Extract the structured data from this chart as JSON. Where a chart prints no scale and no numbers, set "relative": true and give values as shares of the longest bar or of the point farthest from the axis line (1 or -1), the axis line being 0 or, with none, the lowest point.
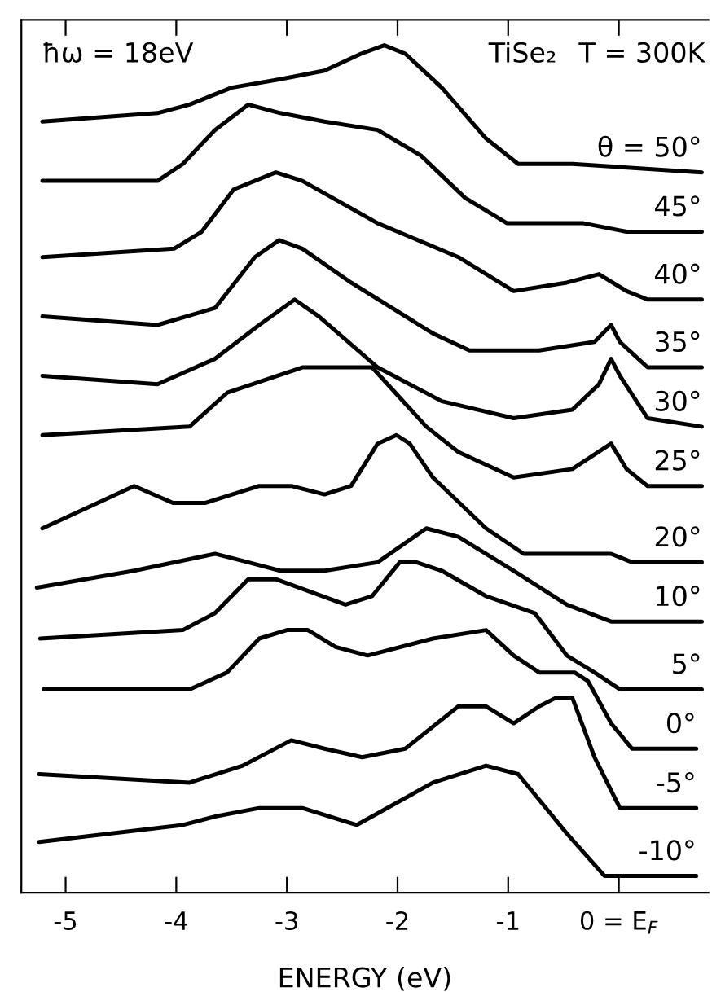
{
  "chart_data": {
    "type": "line",
    "relative": true,
    "xlabel": "ENERGY (eV)",
    "xlim": [
      -5.4,
      0.81
    ],
    "xticks": [
      -5,
      -4,
      -3,
      -2,
      -1,
      {
        "value": 0,
        "label": "0 = E$_{F}$"
      }
    ],
    "annotations": [
      "ħω = 18eV",
      "TiSe₂",
      "T = 300K"
    ],
    "legend": false,
    "grid": false,
    "marker": "none",
    "line_style": "solid",
    "series": [
      {
        "name": "θ = 50°",
        "color": "#000000",
        "x": [
          -5.21,
          -4.17,
          -3.88,
          -3.5,
          -3.06,
          -2.66,
          -2.33,
          -2.12,
          -1.93,
          -1.6,
          -1.2,
          -0.91,
          -0.42,
          0.75
        ],
        "values": [
          0.91,
          0.92,
          0.93,
          0.95,
          0.96,
          0.97,
          0.99,
          1.0,
          0.99,
          0.95,
          0.89,
          0.86,
          0.86,
          0.85
        ]
      },
      {
        "name": "45°",
        "color": "#000000",
        "x": [
          -5.21,
          -4.17,
          -3.94,
          -3.65,
          -3.35,
          -3.06,
          -2.66,
          -2.18,
          -1.79,
          -1.39,
          -1.01,
          -0.32,
          0.07,
          0.75
        ],
        "values": [
          0.84,
          0.84,
          0.86,
          0.9,
          0.93,
          0.92,
          0.91,
          0.9,
          0.87,
          0.82,
          0.79,
          0.79,
          0.78,
          0.78
        ]
      },
      {
        "name": "40°",
        "color": "#000000",
        "x": [
          -5.21,
          -4.02,
          -3.77,
          -3.48,
          -3.1,
          -2.86,
          -2.18,
          -1.45,
          -0.95,
          -0.47,
          -0.18,
          0.07,
          0.26,
          0.75
        ],
        "values": [
          0.75,
          0.76,
          0.78,
          0.83,
          0.85,
          0.84,
          0.79,
          0.75,
          0.71,
          0.72,
          0.73,
          0.71,
          0.7,
          0.7
        ]
      },
      {
        "name": "35°",
        "color": "#000000",
        "x": [
          -5.21,
          -4.17,
          -3.65,
          -3.29,
          -3.07,
          -2.86,
          -2.42,
          -1.68,
          -1.35,
          -0.72,
          -0.22,
          -0.07,
          0.01,
          0.26,
          0.75
        ],
        "values": [
          0.68,
          0.67,
          0.69,
          0.75,
          0.77,
          0.76,
          0.72,
          0.66,
          0.64,
          0.64,
          0.65,
          0.67,
          0.65,
          0.62,
          0.62
        ]
      },
      {
        "name": "30°",
        "color": "#000000",
        "x": [
          -5.21,
          -4.17,
          -3.65,
          -3.25,
          -2.93,
          -2.71,
          -2.18,
          -1.6,
          -0.95,
          -0.42,
          -0.18,
          -0.07,
          0.01,
          0.26,
          0.75
        ],
        "values": [
          0.61,
          0.6,
          0.63,
          0.67,
          0.7,
          0.68,
          0.62,
          0.58,
          0.56,
          0.57,
          0.6,
          0.63,
          0.61,
          0.56,
          0.55
        ]
      },
      {
        "name": "25°",
        "color": "#000000",
        "x": [
          -5.21,
          -3.88,
          -3.54,
          -2.86,
          -2.42,
          -2.23,
          -1.74,
          -1.45,
          -0.95,
          -0.42,
          -0.07,
          0.07,
          0.26,
          0.75
        ],
        "values": [
          0.54,
          0.55,
          0.59,
          0.62,
          0.62,
          0.62,
          0.55,
          0.52,
          0.49,
          0.5,
          0.53,
          0.5,
          0.48,
          0.48
        ]
      },
      {
        "name": "20°",
        "color": "#000000",
        "x": [
          -5.21,
          -4.71,
          -4.38,
          -4.03,
          -3.74,
          -3.25,
          -2.96,
          -2.66,
          -2.42,
          -2.18,
          -2.01,
          -1.89,
          -1.68,
          -1.2,
          -0.86,
          -0.07,
          0.12,
          0.75
        ],
        "values": [
          0.43,
          0.46,
          0.48,
          0.46,
          0.46,
          0.48,
          0.48,
          0.47,
          0.48,
          0.53,
          0.54,
          0.53,
          0.49,
          0.43,
          0.4,
          0.4,
          0.39,
          0.39
        ]
      },
      {
        "name": "10°",
        "color": "#000000",
        "x": [
          -5.26,
          -4.38,
          -3.65,
          -3.35,
          -3.06,
          -2.66,
          -2.18,
          -1.74,
          -1.45,
          -0.95,
          -0.47,
          -0.07,
          0.75
        ],
        "values": [
          0.36,
          0.38,
          0.4,
          0.39,
          0.38,
          0.38,
          0.39,
          0.43,
          0.42,
          0.38,
          0.34,
          0.32,
          0.32
        ]
      },
      {
        "name": "5°",
        "color": "#000000",
        "x": [
          -5.23,
          -3.94,
          -3.65,
          -3.35,
          -3.1,
          -2.47,
          -2.23,
          -1.98,
          -1.83,
          -1.6,
          -1.2,
          -0.76,
          -0.47,
          -0.22,
          0.01,
          0.75
        ],
        "values": [
          0.3,
          0.31,
          0.33,
          0.37,
          0.37,
          0.34,
          0.35,
          0.39,
          0.39,
          0.38,
          0.35,
          0.33,
          0.28,
          0.26,
          0.24,
          0.24
        ]
      },
      {
        "name": "0°",
        "color": "#000000",
        "x": [
          -5.2,
          -3.88,
          -3.54,
          -3.25,
          -3.0,
          -2.81,
          -2.56,
          -2.27,
          -1.68,
          -1.2,
          -0.95,
          -0.72,
          -0.51,
          -0.4,
          -0.28,
          -0.07,
          0.12,
          0.7
        ],
        "values": [
          0.24,
          0.24,
          0.26,
          0.3,
          0.31,
          0.31,
          0.29,
          0.28,
          0.3,
          0.31,
          0.28,
          0.26,
          0.26,
          0.26,
          0.25,
          0.2,
          0.17,
          0.17
        ]
      },
      {
        "name": "-5°",
        "color": "#000000",
        "x": [
          -5.24,
          -3.88,
          -3.4,
          -2.96,
          -2.66,
          -2.32,
          -1.93,
          -1.45,
          -1.2,
          -0.95,
          -0.72,
          -0.57,
          -0.42,
          -0.22,
          0.01,
          0.7
        ],
        "values": [
          0.14,
          0.13,
          0.15,
          0.18,
          0.17,
          0.16,
          0.17,
          0.22,
          0.22,
          0.2,
          0.22,
          0.23,
          0.23,
          0.16,
          0.1,
          0.1
        ]
      },
      {
        "name": "-10°",
        "color": "#000000",
        "x": [
          -5.24,
          -3.94,
          -3.65,
          -3.25,
          -2.86,
          -2.37,
          -1.68,
          -1.2,
          -0.91,
          -0.47,
          -0.13,
          0.01,
          0.7
        ],
        "values": [
          0.06,
          0.08,
          0.09,
          0.1,
          0.1,
          0.08,
          0.13,
          0.15,
          0.14,
          0.07,
          0.02,
          0.02,
          0.02
        ]
      }
    ]
  }
}
